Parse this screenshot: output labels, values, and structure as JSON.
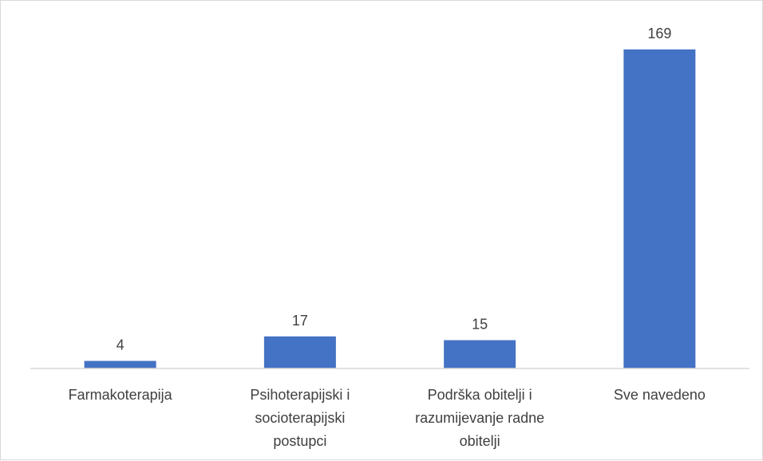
{
  "chart_data": {
    "type": "bar",
    "categories": [
      [
        "Farmakoterapija"
      ],
      [
        "Psihoterapijski i",
        "socioterapijski",
        "postupci"
      ],
      [
        "Podrška obitelji i",
        "razumijevanje radne",
        "obitelji"
      ],
      [
        "Sve navedeno"
      ]
    ],
    "values": [
      4,
      17,
      15,
      169
    ],
    "data_labels": [
      "4",
      "17",
      "15",
      "169"
    ],
    "title": "",
    "xlabel": "",
    "ylabel": "",
    "ylim": [
      0,
      169
    ],
    "grid": false,
    "legend": "none",
    "colors": {
      "bar": "#4472c4",
      "axis": "#d9d9d9",
      "text": "#404040"
    }
  }
}
